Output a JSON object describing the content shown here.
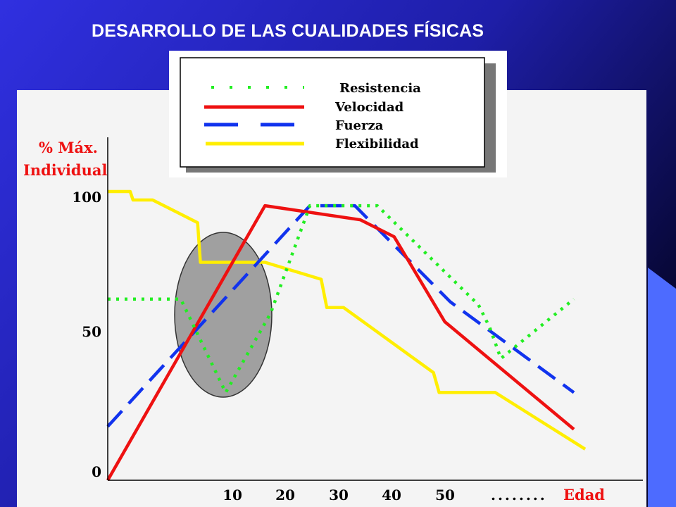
{
  "slide": {
    "title": "DESARROLLO DE LAS CUALIDADES FÍSICAS",
    "colors": {
      "background_dark": "#0d0d55",
      "background_blue": "#2a2ad8",
      "accent_blue": "#4d6bff",
      "panel": "#f4f4f4"
    }
  },
  "chart_data": {
    "type": "line",
    "title": "",
    "ylabel_line1": "% Máx.",
    "ylabel_line2": "Individual",
    "xlabel": "Edad",
    "xlabel_dots": "........",
    "x_ticks": [
      "10",
      "20",
      "30",
      "40",
      "50"
    ],
    "y_ticks": [
      "0",
      "50",
      "100"
    ],
    "xlim": [
      0,
      83
    ],
    "ylim": [
      0,
      100
    ],
    "grid": false,
    "legend": {
      "placement": "top",
      "entries": [
        {
          "label": "Resistencia",
          "color": "#22ee22",
          "style": "dotted"
        },
        {
          "label": "Velocidad",
          "color": "#ee1111",
          "style": "solid"
        },
        {
          "label": "Fuerza",
          "color": "#1133ee",
          "style": "dashed"
        },
        {
          "label": "Flexibilidad",
          "color": "#ffee00",
          "style": "solid"
        }
      ]
    },
    "series": [
      {
        "name": "Resistencia",
        "color": "#22ee22",
        "style": "dotted",
        "x": [
          0,
          13,
          21,
          29,
          36,
          48,
          66,
          68,
          70,
          83
        ],
        "y": [
          64,
          64,
          31,
          59,
          97,
          97,
          62,
          54,
          43,
          64
        ]
      },
      {
        "name": "Velocidad",
        "color": "#ee1111",
        "style": "solid",
        "x": [
          0,
          28,
          45,
          51,
          60,
          83
        ],
        "y": [
          0,
          97,
          92,
          86,
          56,
          18
        ]
      },
      {
        "name": "Fuerza",
        "color": "#1133ee",
        "style": "dashed",
        "x": [
          0,
          36,
          44,
          61,
          83
        ],
        "y": [
          19,
          97,
          97,
          63,
          31
        ]
      },
      {
        "name": "Flexibilidad",
        "color": "#ffee00",
        "style": "solid",
        "x": [
          0,
          4,
          4.5,
          8,
          16,
          16.5,
          28,
          38,
          39,
          42,
          58,
          59,
          69,
          85
        ],
        "y": [
          102,
          102,
          99,
          99,
          91,
          77,
          77,
          71,
          61,
          61,
          38,
          31,
          31,
          11
        ]
      }
    ],
    "annotations": [
      {
        "type": "ellipse",
        "label": "",
        "color": "#a0a0a0",
        "center_x": 21,
        "center_y": 59
      }
    ]
  }
}
